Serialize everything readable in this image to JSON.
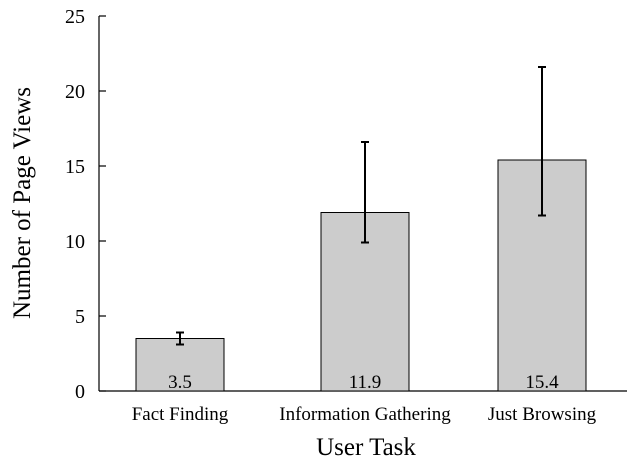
{
  "chart_data": {
    "type": "bar",
    "title": "",
    "xlabel": "User Task",
    "ylabel": "Number of Page Views",
    "categories": [
      "Fact Finding",
      "Information Gathering",
      "Just Browsing"
    ],
    "values": [
      3.5,
      11.9,
      15.4
    ],
    "data_labels": [
      "3.5",
      "11.9",
      "15.4"
    ],
    "error_bars": [
      {
        "low": 3.1,
        "high": 3.9
      },
      {
        "low": 9.9,
        "high": 16.6
      },
      {
        "low": 11.7,
        "high": 21.6
      }
    ],
    "ylim": [
      0,
      25
    ],
    "yticks": [
      0,
      5,
      10,
      15,
      20,
      25
    ],
    "grid": false,
    "legend": "none",
    "colors": {
      "bar_fill": "#cccccc",
      "bar_stroke": "#000000",
      "axis": "#000000"
    }
  }
}
